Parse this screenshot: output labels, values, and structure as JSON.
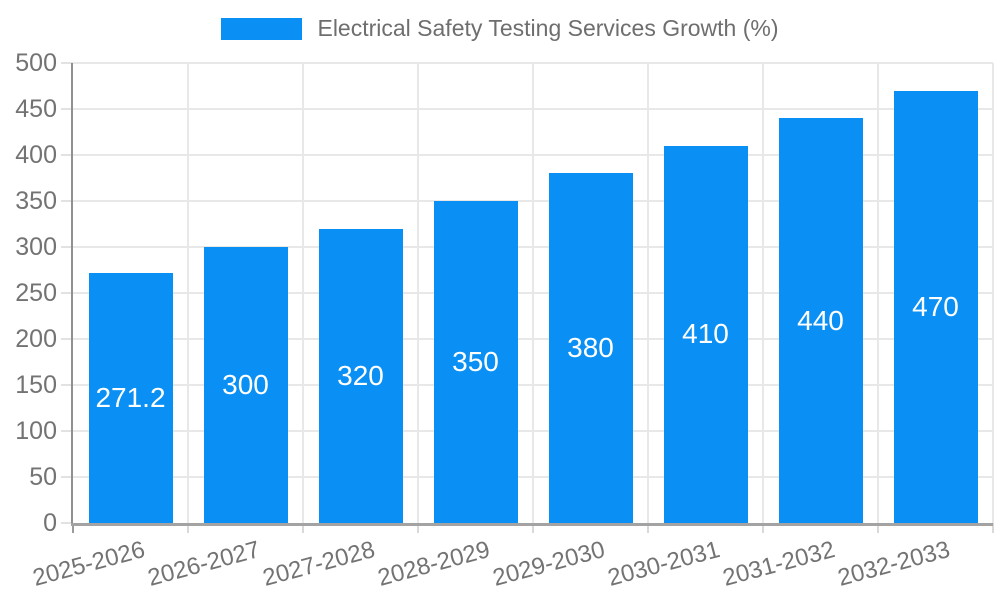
{
  "chart_data": {
    "type": "bar",
    "title": "Electrical Safety Testing Services Growth (%)",
    "categories": [
      "2025-2026",
      "2026-2027",
      "2027-2028",
      "2028-2029",
      "2029-2030",
      "2030-2031",
      "2031-2032",
      "2032-2033"
    ],
    "values": [
      271.2,
      300,
      320,
      350,
      380,
      410,
      440,
      470
    ],
    "bar_labels": [
      "271.2",
      "300",
      "320",
      "350",
      "380",
      "410",
      "440",
      "470"
    ],
    "xlabel": "",
    "ylabel": "",
    "ylim": [
      0,
      500
    ],
    "yticks": [
      0,
      50,
      100,
      150,
      200,
      250,
      300,
      350,
      400,
      450,
      500
    ],
    "grid": true,
    "legend_position": "top",
    "colors": {
      "bar": "#0a90f4",
      "bar_label": "#ffffff",
      "grid": "#e8e8e8",
      "axis": "#a3a3a3",
      "tick_text": "#737373",
      "legend_text": "#6e6e6e",
      "background": "#ffffff"
    }
  }
}
